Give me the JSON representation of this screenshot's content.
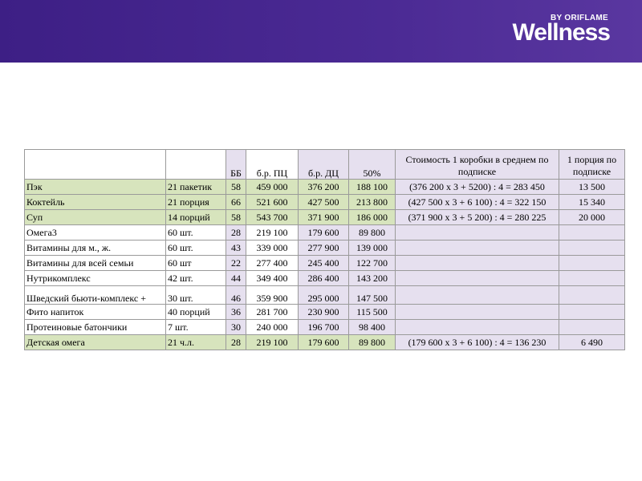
{
  "brand": {
    "by_line": "BY ORIFLAME",
    "wordmark": "Wellness",
    "header_color": "#4b2a94"
  },
  "table": {
    "headers": [
      "",
      "",
      "ББ",
      "б.р. ПЦ",
      "б.р. ДЦ",
      "50%",
      "Стоимость 1 коробки  в среднем по подписке",
      "1 порция  по подписке"
    ],
    "rows": [
      {
        "name": "Пэк",
        "qty": "21 пакетик",
        "bb": "58",
        "pc": "459 000",
        "dc": "376 200",
        "half": "188 100",
        "formula": "(376 200 х 3 + 5200) : 4 = 283 450",
        "portion": "13 500",
        "green": true
      },
      {
        "name": "Коктейль",
        "qty": "21 порция",
        "bb": "66",
        "pc": "521 600",
        "dc": "427 500",
        "half": "213 800",
        "formula": "(427 500 х 3 + 6 100) : 4 = 322 150",
        "portion": "15 340",
        "green": true
      },
      {
        "name": "Суп",
        "qty": "14 порций",
        "bb": "58",
        "pc": "543 700",
        "dc": "371 900",
        "half": "186 000",
        "formula": "(371 900 х 3 + 5 200) : 4 = 280 225",
        "portion": "20 000",
        "green": true
      },
      {
        "name": "Омега3",
        "qty": "60 шт.",
        "bb": "28",
        "pc": "219 100",
        "dc": "179 600",
        "half": "89 800",
        "formula": "",
        "portion": "",
        "green": false
      },
      {
        "name": "Витамины для м., ж.",
        "qty": "60 шт.",
        "bb": "43",
        "pc": "339 000",
        "dc": "277 900",
        "half": "139 000",
        "formula": "",
        "portion": "",
        "green": false
      },
      {
        "name": "Витамины для всей семьи",
        "qty": "60 шт",
        "bb": "22",
        "pc": "277 400",
        "dc": "245 400",
        "half": "122 700",
        "formula": "",
        "portion": "",
        "green": false
      },
      {
        "name": "Нутрикомплекс",
        "qty": "42 шт.",
        "bb": "44",
        "pc": "349 400",
        "dc": "286 400",
        "half": "143 200",
        "formula": "",
        "portion": "",
        "green": false
      },
      {
        "name": "Шведский бьюти-комплекс +",
        "qty": " 30 шт.",
        "bb": "46",
        "pc": "359 900",
        "dc": "295 000",
        "half": "147 500",
        "formula": "",
        "portion": "",
        "green": false,
        "tall": true
      },
      {
        "name": "Фито напиток",
        "qty": "40 порций",
        "bb": "36",
        "pc": "281 700",
        "dc": "230 900",
        "half": "115 500",
        "formula": "",
        "portion": "",
        "green": false
      },
      {
        "name": "Протеиновые батончики",
        "qty": "7 шт.",
        "bb": "30",
        "pc": "240 000",
        "dc": "196 700",
        "half": "98 400",
        "formula": "",
        "portion": "",
        "green": false
      },
      {
        "name": "Детская омега",
        "qty": " 21 ч.л.",
        "bb": "28",
        "pc": "219 100",
        "dc": "179 600",
        "half": "89 800",
        "formula": "(179 600 х 3 + 6 100) : 4 = 136 230",
        "portion": "6 490",
        "green": true
      }
    ]
  }
}
